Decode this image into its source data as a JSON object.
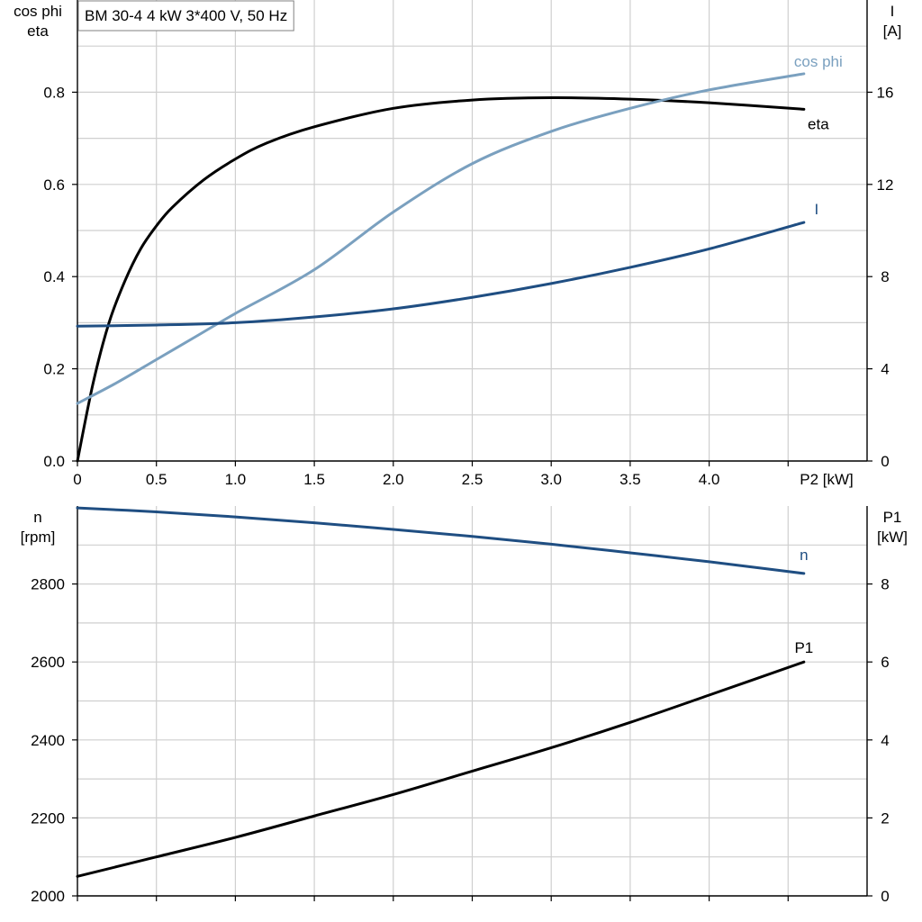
{
  "chart_data": [
    {
      "type": "line",
      "title": "BM 30-4   4 kW   3*400 V, 50 Hz",
      "xlabel": "P2 [kW]",
      "ylabel_left": [
        "cos phi",
        "eta"
      ],
      "ylabel_right": [
        "I",
        "[A]"
      ],
      "xlim": [
        0,
        5
      ],
      "ylim_left": [
        0,
        1
      ],
      "ylim_right": [
        0,
        20
      ],
      "x_ticks": [
        {
          "v": 0,
          "label": "0"
        },
        {
          "v": 0.5,
          "label": "0.5"
        },
        {
          "v": 1,
          "label": "1.0"
        },
        {
          "v": 1.5,
          "label": "1.5"
        },
        {
          "v": 2,
          "label": "2.0"
        },
        {
          "v": 2.5,
          "label": "2.5"
        },
        {
          "v": 3,
          "label": "3.0"
        },
        {
          "v": 3.5,
          "label": "3.5"
        },
        {
          "v": 4,
          "label": "4.0"
        }
      ],
      "y_left_ticks": [
        {
          "v": 0,
          "label": "0.0"
        },
        {
          "v": 0.2,
          "label": "0.2"
        },
        {
          "v": 0.4,
          "label": "0.4"
        },
        {
          "v": 0.6,
          "label": "0.6"
        },
        {
          "v": 0.8,
          "label": "0.8"
        }
      ],
      "y_right_ticks": [
        {
          "v": 0,
          "label": "0"
        },
        {
          "v": 4,
          "label": "4"
        },
        {
          "v": 8,
          "label": "8"
        },
        {
          "v": 12,
          "label": "12"
        },
        {
          "v": 16,
          "label": "16"
        }
      ],
      "grid": true,
      "series": [
        {
          "name": "eta",
          "axis": "left",
          "color": "#000000",
          "x": [
            0,
            0.1,
            0.2,
            0.3,
            0.4,
            0.5,
            0.6,
            0.8,
            1.0,
            1.2,
            1.5,
            2.0,
            2.5,
            3.0,
            3.5,
            4.0,
            4.6
          ],
          "y": [
            0.0,
            0.17,
            0.3,
            0.39,
            0.46,
            0.51,
            0.55,
            0.61,
            0.655,
            0.69,
            0.725,
            0.765,
            0.783,
            0.788,
            0.785,
            0.777,
            0.763
          ]
        },
        {
          "name": "cos phi",
          "axis": "left",
          "color": "#7aa0bf",
          "x": [
            0,
            0.25,
            0.5,
            0.75,
            1.0,
            1.5,
            2.0,
            2.5,
            3.0,
            3.5,
            4.0,
            4.6
          ],
          "y": [
            0.125,
            0.17,
            0.22,
            0.27,
            0.32,
            0.415,
            0.54,
            0.645,
            0.715,
            0.765,
            0.805,
            0.84
          ]
        },
        {
          "name": "I",
          "axis": "right",
          "color": "#1f4e82",
          "x": [
            0,
            0.5,
            1.0,
            1.5,
            2.0,
            2.5,
            3.0,
            3.5,
            4.0,
            4.6
          ],
          "y": [
            5.85,
            5.9,
            6.0,
            6.25,
            6.6,
            7.1,
            7.7,
            8.4,
            9.2,
            10.35
          ]
        }
      ]
    },
    {
      "type": "line",
      "xlabel": "",
      "ylabel_left": [
        "n",
        "[rpm]"
      ],
      "ylabel_right": [
        "P1",
        "[kW]"
      ],
      "xlim": [
        0,
        5
      ],
      "ylim_left": [
        2000,
        3000
      ],
      "ylim_right": [
        0,
        10
      ],
      "y_left_ticks": [
        {
          "v": 2000,
          "label": "2000"
        },
        {
          "v": 2200,
          "label": "2200"
        },
        {
          "v": 2400,
          "label": "2400"
        },
        {
          "v": 2600,
          "label": "2600"
        },
        {
          "v": 2800,
          "label": "2800"
        }
      ],
      "y_right_ticks": [
        {
          "v": 0,
          "label": "0"
        },
        {
          "v": 2,
          "label": "2"
        },
        {
          "v": 4,
          "label": "4"
        },
        {
          "v": 6,
          "label": "6"
        },
        {
          "v": 8,
          "label": "8"
        }
      ],
      "grid": true,
      "series": [
        {
          "name": "n",
          "axis": "left",
          "color": "#1f4e82",
          "x": [
            0,
            0.5,
            1.0,
            1.5,
            2.0,
            2.5,
            3.0,
            3.5,
            4.0,
            4.6
          ],
          "y": [
            2995,
            2985,
            2972,
            2957,
            2940,
            2922,
            2902,
            2880,
            2857,
            2827
          ]
        },
        {
          "name": "P1",
          "axis": "right",
          "color": "#000000",
          "x": [
            0,
            0.5,
            1.0,
            1.5,
            2.0,
            2.5,
            3.0,
            3.5,
            4.0,
            4.6
          ],
          "y": [
            0.5,
            1.0,
            1.5,
            2.05,
            2.6,
            3.2,
            3.8,
            4.45,
            5.15,
            6.0
          ]
        }
      ]
    }
  ]
}
